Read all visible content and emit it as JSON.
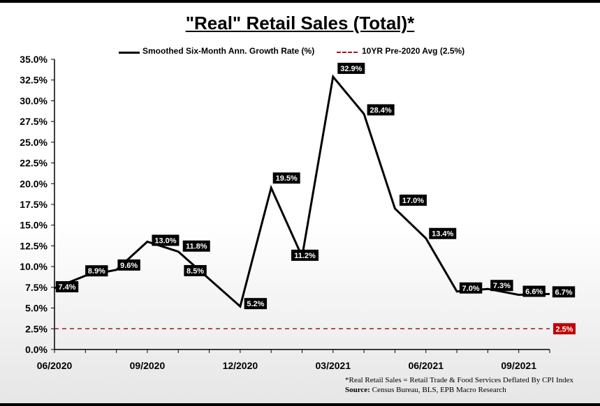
{
  "chart_data": {
    "type": "line",
    "title": "\"Real\" Retail Sales (Total)*",
    "xlabel": "",
    "ylabel": "",
    "ylim": [
      0,
      35
    ],
    "y_ticks": [
      "0.0%",
      "2.5%",
      "5.0%",
      "7.5%",
      "10.0%",
      "12.5%",
      "15.0%",
      "17.5%",
      "20.0%",
      "22.5%",
      "25.0%",
      "27.5%",
      "30.0%",
      "32.5%",
      "35.0%"
    ],
    "x_ticks": [
      "06/2020",
      "09/2020",
      "12/2020",
      "03/2021",
      "06/2021",
      "09/2021"
    ],
    "months": [
      "2020-06",
      "2020-07",
      "2020-08",
      "2020-09",
      "2020-10",
      "2020-11",
      "2020-12",
      "2021-01",
      "2021-02",
      "2021-03",
      "2021-04",
      "2021-05",
      "2021-06",
      "2021-07",
      "2021-08",
      "2021-09",
      "2021-10"
    ],
    "series": [
      {
        "name": "Smoothed Six-Month Ann. Growth Rate (%)",
        "values": [
          7.4,
          8.9,
          9.6,
          13.0,
          11.8,
          8.5,
          5.2,
          19.5,
          11.2,
          32.9,
          28.4,
          17.0,
          13.4,
          7.0,
          7.3,
          6.6,
          6.7
        ],
        "labels": [
          "7.4%",
          "8.9%",
          "9.6%",
          "13.0%",
          "11.8%",
          "8.5%",
          "5.2%",
          "19.5%",
          "11.2%",
          "32.9%",
          "28.4%",
          "17.0%",
          "13.4%",
          "7.0%",
          "7.3%",
          "6.6%",
          "6.7%"
        ]
      },
      {
        "name": "10YR Pre-2020 Avg (2.5%)",
        "value": 2.5,
        "label": "2.5%",
        "style": "dashed"
      }
    ],
    "legend_position": "top",
    "grid": false
  },
  "colors": {
    "line": "#000000",
    "average": "#9b1b22",
    "label_bg": "#000000",
    "avg_label_bg": "#c00000"
  },
  "footnote": {
    "line1": "*Real Retail Sales = Retail Trade & Food Services Deflated By CPI Index",
    "source_label": "Source:",
    "source_text": "Census Bureau, BLS, EPB Macro Research"
  }
}
